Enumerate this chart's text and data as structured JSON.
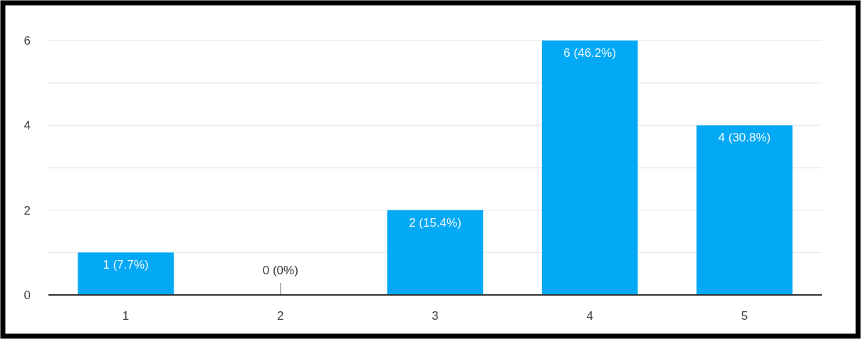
{
  "chart_data": {
    "type": "bar",
    "categories": [
      "1",
      "2",
      "3",
      "4",
      "5"
    ],
    "values": [
      1,
      0,
      2,
      6,
      4
    ],
    "color": "#03a9f4",
    "value_labels": [
      "1 (7.7%)",
      "0 (0%)",
      "2 (15.4%)",
      "6 (46.2%)",
      "4 (30.8%)"
    ],
    "ylim": [
      0,
      6
    ],
    "yticks": [
      0,
      {
        "value": 1,
        "label": null
      },
      2,
      {
        "value": 3,
        "label": null
      },
      4,
      {
        "value": 5,
        "label": null
      },
      6
    ],
    "grid": true
  }
}
